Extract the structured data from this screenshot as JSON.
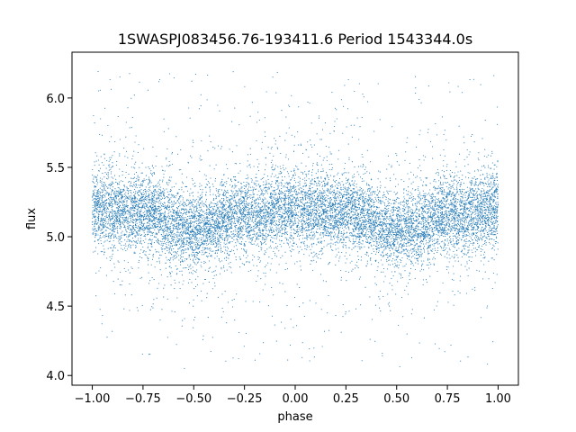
{
  "chart_data": {
    "type": "scatter",
    "title": "1SWASPJ083456.76-193411.6 Period 1543344.0s",
    "xlabel": "phase",
    "ylabel": "flux",
    "xlim": [
      -1.1,
      1.1
    ],
    "ylim": [
      3.93,
      6.33
    ],
    "x_ticks": [
      -1.0,
      -0.75,
      -0.5,
      -0.25,
      0.0,
      0.25,
      0.5,
      0.75,
      1.0
    ],
    "x_tick_labels": [
      "−1.00",
      "−0.75",
      "−0.50",
      "−0.25",
      "0.00",
      "0.25",
      "0.50",
      "0.75",
      "1.00"
    ],
    "y_ticks": [
      4.0,
      4.5,
      5.0,
      5.5,
      6.0
    ],
    "y_tick_labels": [
      "4.0",
      "4.5",
      "5.0",
      "5.5",
      "6.0"
    ],
    "grid": false,
    "point_color": "#1f77b4",
    "series": [
      {
        "phase_range": [
          -1.0,
          1.0
        ],
        "phase_profile": [
          {
            "x": -1.0,
            "y": 5.2
          },
          {
            "x": -0.75,
            "y": 5.17
          },
          {
            "x": -0.5,
            "y": 5.05
          },
          {
            "x": -0.25,
            "y": 5.15
          },
          {
            "x": 0.0,
            "y": 5.2
          },
          {
            "x": 0.25,
            "y": 5.17
          },
          {
            "x": 0.5,
            "y": 5.05
          },
          {
            "x": 0.75,
            "y": 5.15
          },
          {
            "x": 1.0,
            "y": 5.2
          }
        ],
        "core_spread": [
          4.85,
          5.45
        ],
        "outlier_range": [
          4.05,
          6.22
        ]
      }
    ]
  }
}
